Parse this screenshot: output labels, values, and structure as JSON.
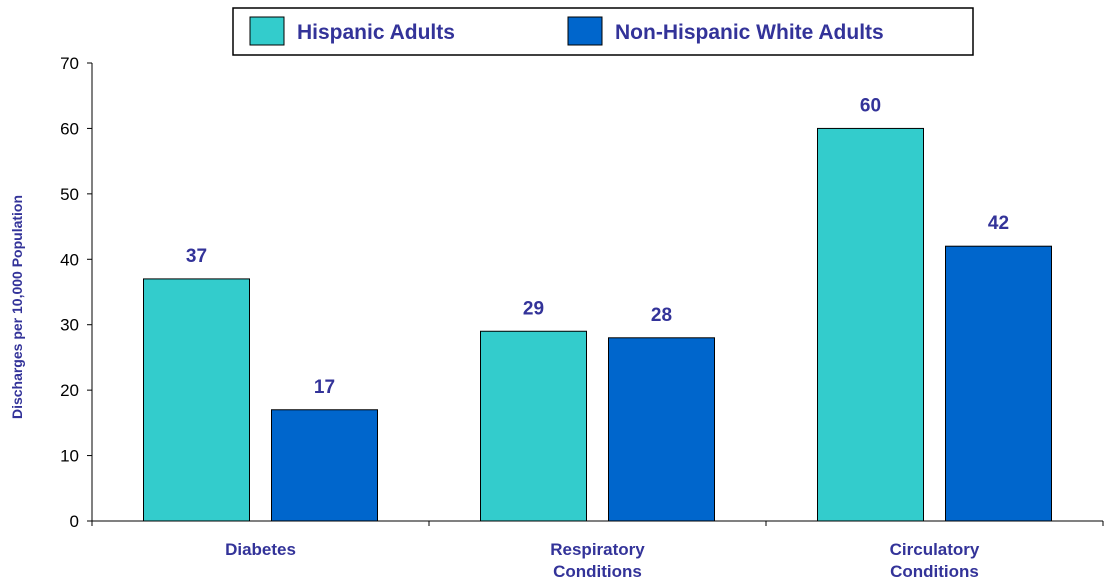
{
  "chart_data": {
    "type": "bar",
    "title": "",
    "xlabel": "",
    "ylabel": "Discharges per 10,000 Population",
    "ylim": [
      0,
      70
    ],
    "yticks": [
      0,
      10,
      20,
      30,
      40,
      50,
      60,
      70
    ],
    "grid": false,
    "legend_position": "top-center",
    "categories": [
      [
        "Diabetes"
      ],
      [
        "Respiratory",
        "Conditions"
      ],
      [
        "Circulatory",
        "Conditions"
      ]
    ],
    "series": [
      {
        "name": "Hispanic Adults",
        "color": "#33cccc",
        "values": [
          37,
          29,
          60
        ]
      },
      {
        "name": "Non-Hispanic White Adults",
        "color": "#0066cc",
        "values": [
          17,
          28,
          42
        ]
      }
    ],
    "label_color": "#333399",
    "axis_color": "#000000"
  }
}
